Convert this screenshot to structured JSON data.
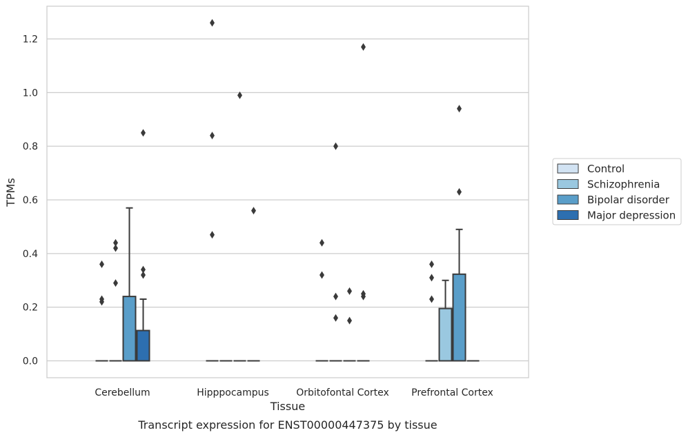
{
  "chart_data": {
    "type": "boxplot",
    "title": "",
    "caption": "Transcript expression for ENST00000447375 by tissue",
    "xlabel": "Tissue",
    "ylabel": "TPMs",
    "ylim": [
      -0.06,
      1.33
    ],
    "yticks": [
      0.0,
      0.2,
      0.4,
      0.6,
      0.8,
      1.0,
      1.2
    ],
    "ytick_labels": [
      "0.0",
      "0.2",
      "0.4",
      "0.6",
      "0.8",
      "1.0",
      "1.2"
    ],
    "grid": "horizontal",
    "legend_position": "right",
    "categories": [
      "Cerebellum",
      "Hipppocampus",
      "Orbitofontal Cortex",
      "Prefrontal Cortex"
    ],
    "series": [
      {
        "name": "Control",
        "color": "#d2e3f3",
        "boxes": [
          {
            "q1": 0,
            "median": 0,
            "q3": 0,
            "whisker_low": 0,
            "whisker_high": 0,
            "outliers": [
              0.22,
              0.23,
              0.36
            ]
          },
          {
            "q1": 0,
            "median": 0,
            "q3": 0,
            "whisker_low": 0,
            "whisker_high": 0,
            "outliers": [
              0.47,
              0.84,
              1.26
            ]
          },
          {
            "q1": 0,
            "median": 0,
            "q3": 0,
            "whisker_low": 0,
            "whisker_high": 0,
            "outliers": [
              0.32,
              0.44
            ]
          },
          {
            "q1": 0,
            "median": 0,
            "q3": 0,
            "whisker_low": 0,
            "whisker_high": 0,
            "outliers": [
              0.23,
              0.31,
              0.36
            ]
          }
        ]
      },
      {
        "name": "Schizophrenia",
        "color": "#9ac8e0",
        "boxes": [
          {
            "q1": 0,
            "median": 0,
            "q3": 0,
            "whisker_low": 0,
            "whisker_high": 0,
            "outliers": [
              0.29,
              0.42,
              0.44
            ]
          },
          {
            "q1": 0,
            "median": 0,
            "q3": 0,
            "whisker_low": 0,
            "whisker_high": 0,
            "outliers": []
          },
          {
            "q1": 0,
            "median": 0,
            "q3": 0,
            "whisker_low": 0,
            "whisker_high": 0,
            "outliers": [
              0.16,
              0.24,
              0.8
            ]
          },
          {
            "q1": 0,
            "median": 0,
            "q3": 0.195,
            "whisker_low": 0,
            "whisker_high": 0.3,
            "outliers": []
          }
        ]
      },
      {
        "name": "Bipolar disorder",
        "color": "#5a9ec9",
        "boxes": [
          {
            "q1": 0,
            "median": 0,
            "q3": 0.24,
            "whisker_low": 0,
            "whisker_high": 0.57,
            "outliers": []
          },
          {
            "q1": 0,
            "median": 0,
            "q3": 0,
            "whisker_low": 0,
            "whisker_high": 0,
            "outliers": [
              0.99
            ]
          },
          {
            "q1": 0,
            "median": 0,
            "q3": 0,
            "whisker_low": 0,
            "whisker_high": 0,
            "outliers": [
              0.15,
              0.26
            ]
          },
          {
            "q1": 0,
            "median": 0,
            "q3": 0.323,
            "whisker_low": 0,
            "whisker_high": 0.49,
            "outliers": [
              0.63,
              0.94
            ]
          }
        ]
      },
      {
        "name": "Major depression",
        "color": "#2d6fb0",
        "boxes": [
          {
            "q1": 0,
            "median": 0,
            "q3": 0.113,
            "whisker_low": 0,
            "whisker_high": 0.23,
            "outliers": [
              0.32,
              0.34,
              0.85
            ]
          },
          {
            "q1": 0,
            "median": 0,
            "q3": 0,
            "whisker_low": 0,
            "whisker_high": 0,
            "outliers": [
              0.56
            ]
          },
          {
            "q1": 0,
            "median": 0,
            "q3": 0,
            "whisker_low": 0,
            "whisker_high": 0,
            "outliers": [
              0.24,
              0.25,
              1.17
            ]
          },
          {
            "q1": 0,
            "median": 0,
            "q3": 0,
            "whisker_low": 0,
            "whisker_high": 0,
            "outliers": []
          }
        ]
      }
    ]
  }
}
